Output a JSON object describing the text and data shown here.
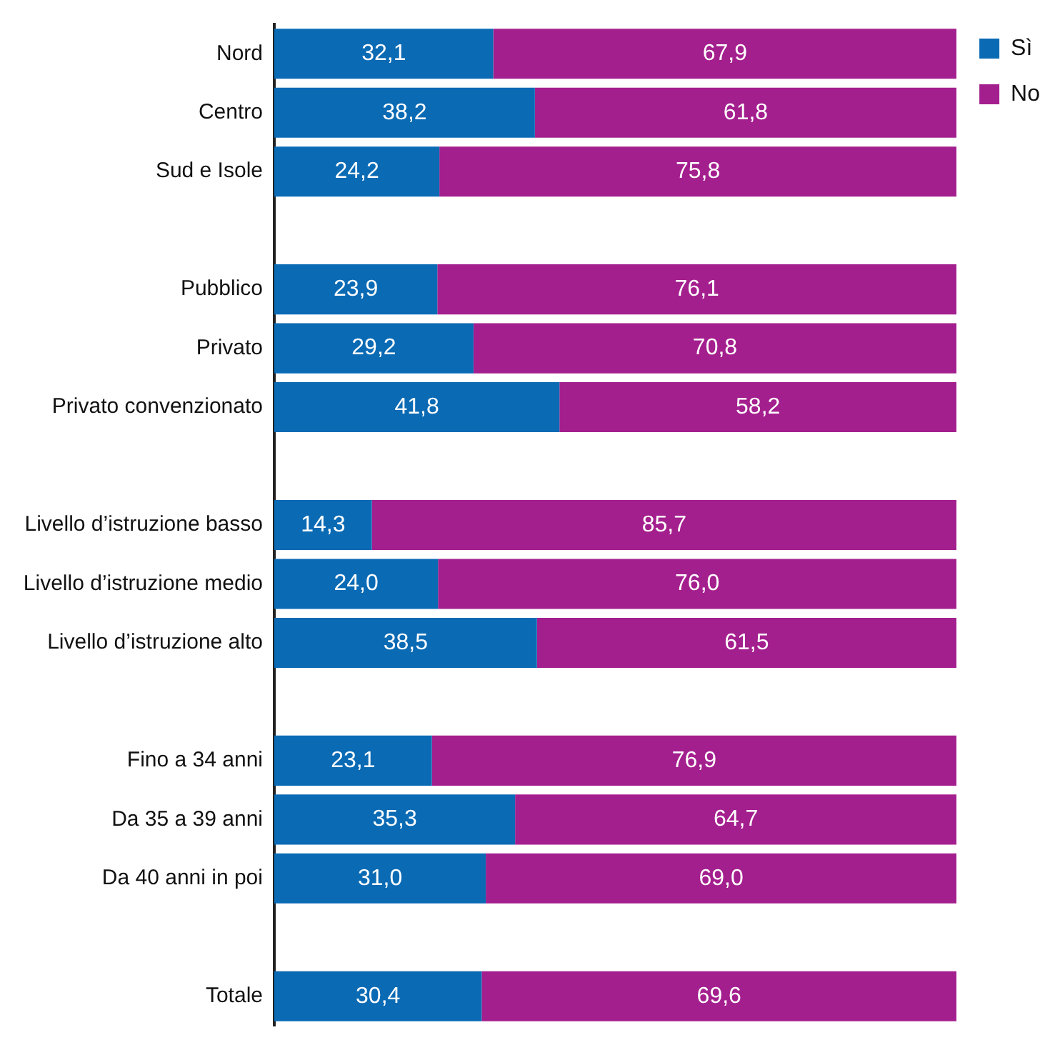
{
  "chart_data": {
    "type": "bar",
    "orientation": "horizontal",
    "stacked": true,
    "legend": "top right",
    "xlim": [
      0,
      100
    ],
    "categories": [
      "Nord",
      "Centro",
      "Sud e Isole",
      null,
      "Pubblico",
      "Privato",
      "Privato convenzionato",
      null,
      "Livello d’istruzione basso",
      "Livello d’istruzione medio",
      "Livello d’istruzione alto",
      null,
      "Fino a 34 anni",
      "Da 35 a 39 anni",
      "Da 40 anni in poi",
      null,
      "Totale"
    ],
    "series": [
      {
        "name": "Sì",
        "color": "#0a6ab4",
        "values": [
          32.1,
          38.2,
          24.2,
          null,
          23.9,
          29.2,
          41.8,
          null,
          14.3,
          24.0,
          38.5,
          null,
          23.1,
          35.3,
          31.0,
          null,
          30.4
        ],
        "value_labels": [
          "32,1",
          "38,2",
          "24,2",
          null,
          "23,9",
          "29,2",
          "41,8",
          null,
          "14,3",
          "24,0",
          "38,5",
          null,
          "23,1",
          "35,3",
          "31,0",
          null,
          "30,4"
        ]
      },
      {
        "name": "No",
        "color": "#a41f8e",
        "values": [
          67.9,
          61.8,
          75.8,
          null,
          76.1,
          70.8,
          58.2,
          null,
          85.7,
          76.0,
          61.5,
          null,
          76.9,
          64.7,
          69.0,
          null,
          69.6
        ],
        "value_labels": [
          "67,9",
          "61,8",
          "75,8",
          null,
          "76,1",
          "70,8",
          "58,2",
          null,
          "85,7",
          "76,0",
          "61,5",
          null,
          "76,9",
          "64,7",
          "69,0",
          null,
          "69,6"
        ]
      }
    ]
  }
}
